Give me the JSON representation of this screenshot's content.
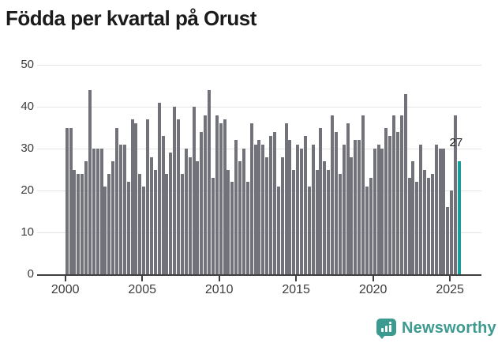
{
  "title": "Födda per kvartal på Orust",
  "chart_data": {
    "type": "bar",
    "title": "Födda per kvartal på Orust",
    "frequency": "quarterly",
    "x_start": "2000-Q1",
    "x_end": "2025-Q3",
    "values": [
      35,
      35,
      25,
      24,
      24,
      27,
      44,
      30,
      30,
      30,
      21,
      24,
      27,
      35,
      31,
      31,
      22,
      37,
      36,
      24,
      21,
      37,
      28,
      25,
      41,
      33,
      24,
      29,
      40,
      37,
      24,
      30,
      28,
      40,
      27,
      34,
      38,
      44,
      23,
      38,
      36,
      37,
      25,
      22,
      32,
      27,
      30,
      22,
      36,
      31,
      32,
      31,
      28,
      33,
      34,
      21,
      28,
      36,
      32,
      25,
      31,
      30,
      33,
      21,
      31,
      25,
      35,
      27,
      25,
      38,
      34,
      24,
      31,
      36,
      28,
      32,
      32,
      38,
      21,
      23,
      30,
      31,
      30,
      35,
      33,
      38,
      34,
      38,
      43,
      23,
      27,
      22,
      31,
      25,
      23,
      24,
      31,
      30,
      30,
      16,
      20,
      38,
      27
    ],
    "highlight_last": {
      "value": 27,
      "label": "27",
      "color": "#14a098"
    },
    "bar_color": "#72727a",
    "xlabel": "",
    "ylabel": "",
    "ylim": [
      0,
      50
    ],
    "y_ticks": [
      "0",
      "10",
      "20",
      "30",
      "40",
      "50"
    ],
    "x_tick_labels": [
      "2000",
      "2005",
      "2010",
      "2015",
      "2020",
      "2025"
    ],
    "grid": "horizontal",
    "gridline_color": "#e5e5e5",
    "axis_color": "#3f3f3f"
  },
  "annotation": {
    "last_value_label": "27"
  },
  "branding": {
    "logo_text": "Newsworthy",
    "logo_color": "#3d9a90",
    "icon": "bar-chart-speech-bubble-icon"
  }
}
